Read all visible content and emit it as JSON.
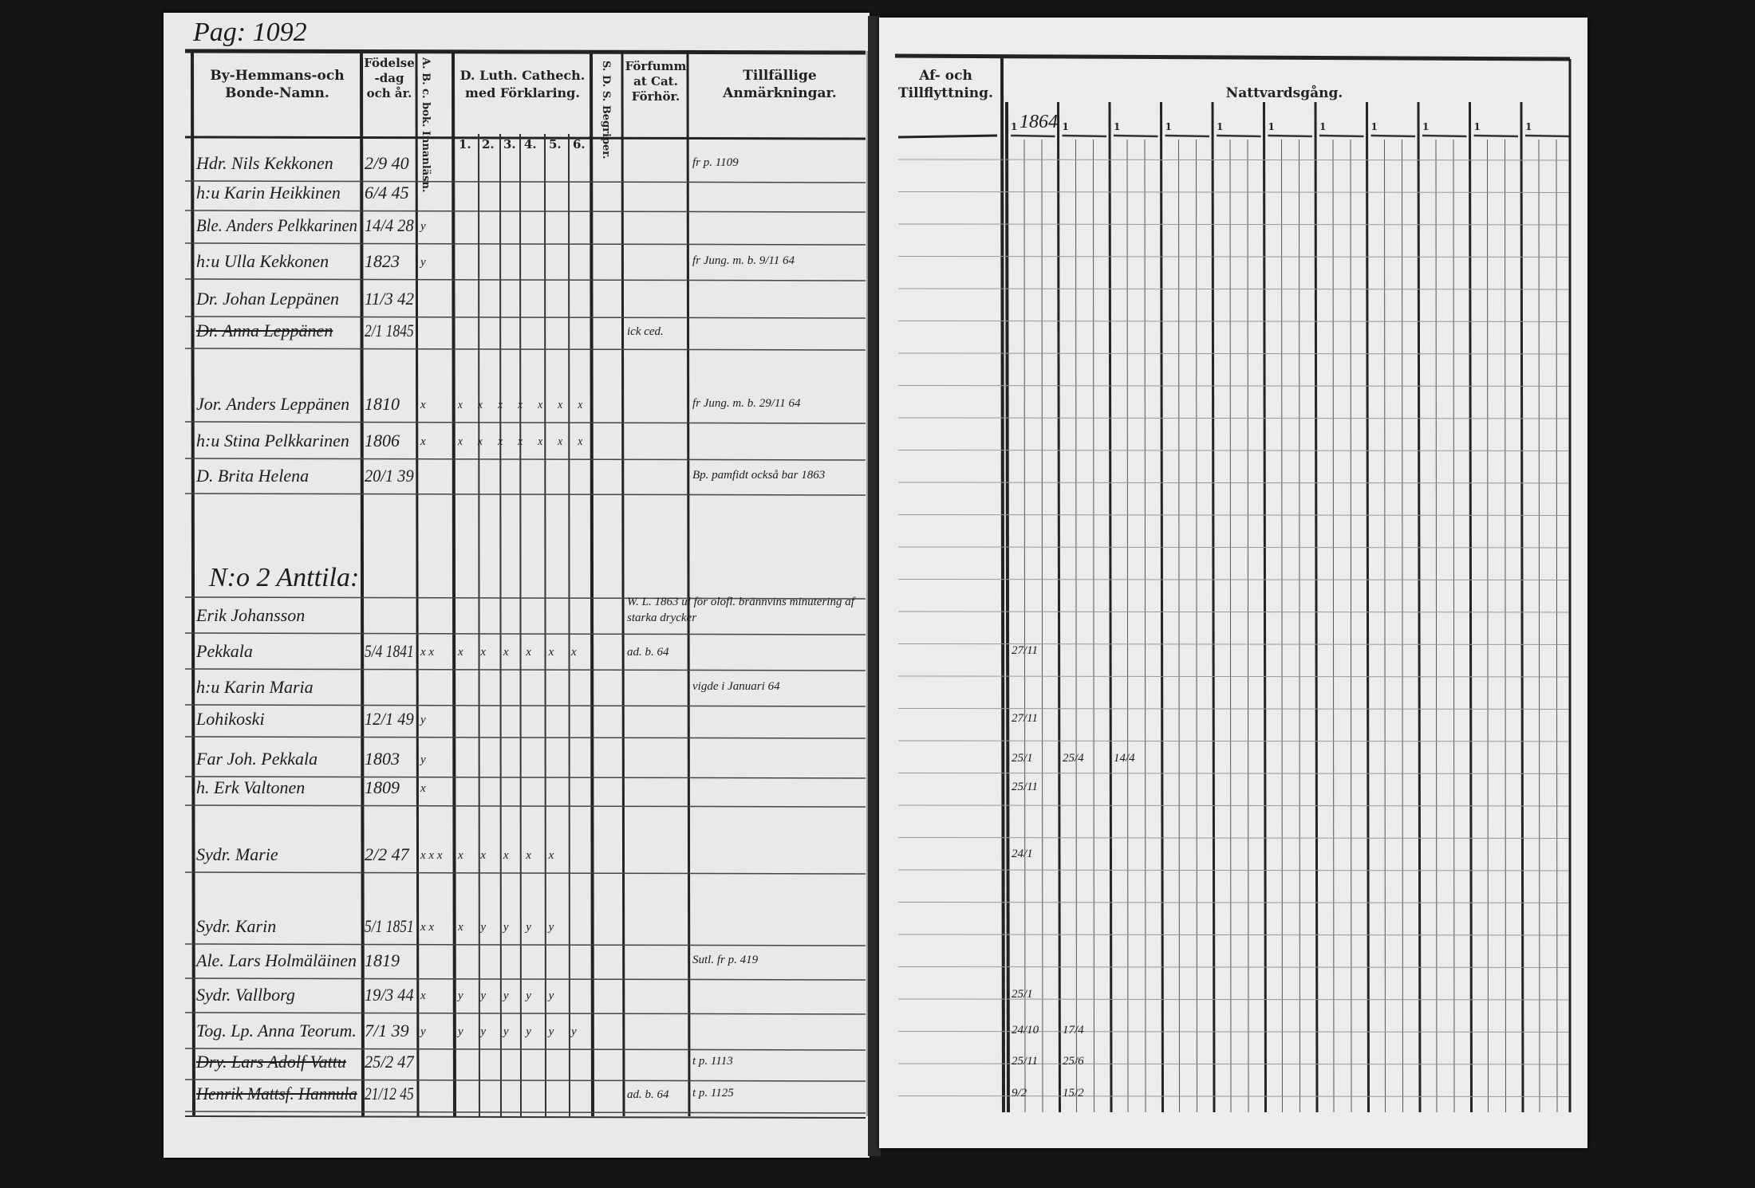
{
  "page_ref": "Pag: 1092",
  "left_headers": {
    "name": "By-Hemmans-och Bonde-Namn.",
    "birth": "Födelse-dag och år.",
    "abc": "A. B. c. bok. Innanläsn.",
    "catech": "D. Luth. Cathech. med Förklaring.",
    "catech_cols": [
      "1.",
      "2.",
      "3.",
      "4.",
      "5.",
      "6."
    ],
    "sds": "S. D. S. Begriper.",
    "forfum": "Förfummat Cat. Förhör.",
    "remarks": "Tillfällige Anmärkningar."
  },
  "right_headers": {
    "moves": "Af- och Tillflyttning.",
    "communion": "Nattvardsgång.",
    "communion_year": "1864",
    "communion_col_mark": "1"
  },
  "rows": [
    {
      "name": "Hdr. Nils Kekkonen",
      "birth": "2/9 40",
      "abc": "",
      "cat": "",
      "remark": "fr p. 1109"
    },
    {
      "name": "h:u Karin Heikkinen",
      "birth": "6/4 45",
      "abc": "",
      "cat": "",
      "remark": ""
    },
    {
      "name": "Ble. Anders Pelkkarinen",
      "birth": "14/4 28",
      "abc": "y",
      "cat": "",
      "remark": ""
    },
    {
      "name": "h:u Ulla Kekkonen",
      "birth": "1823",
      "abc": "y",
      "cat": "",
      "remark": "fr Jung. m. b. 9/11 64"
    },
    {
      "name": "Dr. Johan Leppänen",
      "birth": "11/3 42",
      "abc": "",
      "cat": "",
      "remark": ""
    },
    {
      "name": "Dr. Anna Leppänen",
      "birth": "2/1 1845",
      "abc": "",
      "cat": "",
      "remark": "",
      "forfum": "ick ced.",
      "struck": true
    },
    {
      "name": "Jor. Anders Leppänen",
      "birth": "1810",
      "abc": "x",
      "cat": "x x x x x x x",
      "remark": "fr Jung. m. b. 29/11 64"
    },
    {
      "name": "h:u Stina Pelkkarinen",
      "birth": "1806",
      "abc": "x",
      "cat": "x x x x x x x",
      "remark": ""
    },
    {
      "name": "D. Brita Helena",
      "birth": "20/1 39",
      "abc": "",
      "cat": "",
      "remark": "Bp. pamfidt också bar 1863"
    },
    {
      "name": "N:o 2 Anttila:",
      "birth": "",
      "abc": "",
      "cat": "",
      "remark": "",
      "heading": true
    },
    {
      "name": "Erik Johansson",
      "birth": "",
      "abc": "",
      "cat": "",
      "remark": "W. L. 1863 ul för olofl. brännvins minutering af starka drycker"
    },
    {
      "name": "Pekkala",
      "birth": "5/4 1841",
      "abc": "x x",
      "cat": "x x x x x x",
      "remark": "",
      "forfum": "ad. b. 64"
    },
    {
      "name": "h:u Karin Maria",
      "birth": "",
      "abc": "",
      "cat": "",
      "remark": "vigde i Januari 64"
    },
    {
      "name": "Lohikoski",
      "birth": "12/1 49",
      "abc": "y",
      "cat": "",
      "remark": ""
    },
    {
      "name": "Far Joh. Pekkala",
      "birth": "1803",
      "abc": "y",
      "cat": "",
      "remark": ""
    },
    {
      "name": "h. Erk Valtonen",
      "birth": "1809",
      "abc": "x",
      "cat": "",
      "remark": ""
    },
    {
      "name": "Sydr. Marie",
      "birth": "2/2 47",
      "abc": "x x x",
      "cat": "x x x x x",
      "remark": ""
    },
    {
      "name": "Sydr. Karin",
      "birth": "5/1 1851",
      "abc": "x x",
      "cat": "x y y y y",
      "remark": ""
    },
    {
      "name": "Ale. Lars Holmäläinen",
      "birth": "1819",
      "abc": "",
      "cat": "",
      "remark": "Sutl. fr p. 419"
    },
    {
      "name": "Sydr. Vallborg",
      "birth": "19/3 44",
      "abc": "x",
      "cat": "y y y y y",
      "remark": ""
    },
    {
      "name": "Tog. Lp. Anna Teorum.",
      "birth": "7/1 39",
      "abc": "y",
      "cat": "y y y y y y",
      "remark": ""
    },
    {
      "name": "Dry. Lars Adolf Vattu",
      "birth": "25/2 47",
      "abc": "",
      "cat": "",
      "remark": "t p. 1113",
      "struck": true
    },
    {
      "name": "Henrik Mattsf. Hannula",
      "birth": "21/12 45",
      "abc": "",
      "cat": "",
      "remark": "t p. 1125",
      "forfum": "ad. b. 64",
      "struck": true
    }
  ],
  "communion_marks": [
    {
      "row": 11,
      "col1": "27/11"
    },
    {
      "row": 13,
      "col1": "27/11"
    },
    {
      "row": 14,
      "col1": "25/1",
      "col2": "25/4",
      "col3": "14/4"
    },
    {
      "row": 15,
      "col1": "25/11"
    },
    {
      "row": 16,
      "col1": "24/1"
    },
    {
      "row": 19,
      "col1": "25/1"
    },
    {
      "row": 20,
      "col1": "24/10",
      "col2": "17/4"
    },
    {
      "row": 21,
      "col1": "25/11",
      "col2": "25/6"
    },
    {
      "row": 22,
      "col1": "9/2",
      "col2": "15/2"
    }
  ]
}
